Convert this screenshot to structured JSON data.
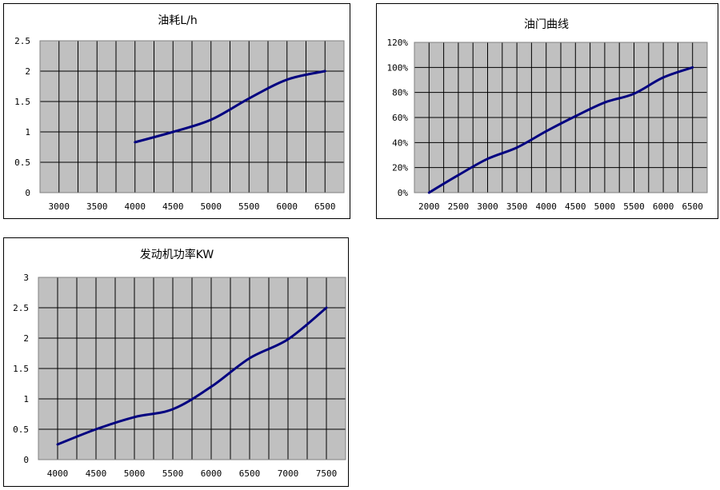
{
  "style": {
    "plot_bg": "#c0c0c0",
    "grid_color": "#000000",
    "line_color": "#000080"
  },
  "chart_data": [
    {
      "type": "line",
      "title": "油耗L/h",
      "xlabel": "",
      "ylabel": "",
      "categories": [
        "3000",
        "3500",
        "4000",
        "4500",
        "5000",
        "5500",
        "6000",
        "6500"
      ],
      "xlim": [
        2750,
        6750
      ],
      "ylim": [
        0,
        2.5
      ],
      "yticks": [
        "0",
        "0.5",
        "1",
        "1.5",
        "2",
        "2.5"
      ],
      "ytick_values": [
        0,
        0.5,
        1,
        1.5,
        2,
        2.5
      ],
      "series": [
        {
          "x": [
            4000,
            4500,
            5000,
            5500,
            6000,
            6500
          ],
          "values": [
            0.83,
            1.0,
            1.2,
            1.55,
            1.86,
            2.0
          ]
        }
      ],
      "grid": true,
      "legend": "none"
    },
    {
      "type": "line",
      "title": "油门曲线",
      "xlabel": "",
      "ylabel": "",
      "categories": [
        "2000",
        "2500",
        "3000",
        "3500",
        "4000",
        "4500",
        "5000",
        "5500",
        "6000",
        "6500"
      ],
      "xlim": [
        1750,
        6750
      ],
      "ylim": [
        0,
        1.2
      ],
      "yticks": [
        "0%",
        "20%",
        "40%",
        "60%",
        "80%",
        "100%",
        "120%"
      ],
      "ytick_values": [
        0,
        0.2,
        0.4,
        0.6,
        0.8,
        1.0,
        1.2
      ],
      "series": [
        {
          "x": [
            2000,
            2500,
            3000,
            3500,
            4000,
            4500,
            5000,
            5500,
            6000,
            6500
          ],
          "values": [
            0,
            0.14,
            0.27,
            0.36,
            0.49,
            0.61,
            0.72,
            0.79,
            0.92,
            1.0
          ]
        }
      ],
      "grid": true,
      "legend": "none"
    },
    {
      "type": "line",
      "title": "发动机功率KW",
      "xlabel": "",
      "ylabel": "",
      "categories": [
        "4000",
        "4500",
        "5000",
        "5500",
        "6000",
        "6500",
        "7000",
        "7500"
      ],
      "xlim": [
        3750,
        7750
      ],
      "ylim": [
        0,
        3
      ],
      "yticks": [
        "0",
        "0.5",
        "1",
        "1.5",
        "2",
        "2.5",
        "3"
      ],
      "ytick_values": [
        0,
        0.5,
        1,
        1.5,
        2,
        2.5,
        3
      ],
      "series": [
        {
          "x": [
            4000,
            4500,
            5000,
            5500,
            6000,
            6500,
            7000,
            7500
          ],
          "values": [
            0.25,
            0.5,
            0.7,
            0.83,
            1.2,
            1.67,
            1.98,
            2.5
          ]
        }
      ],
      "grid": true,
      "legend": "none"
    }
  ]
}
